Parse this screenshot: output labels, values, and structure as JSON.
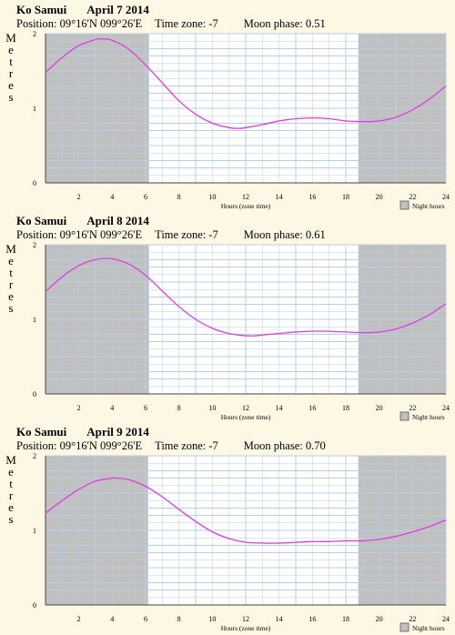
{
  "location": "Ko Samui",
  "position": "Position: 09°16'N 099°26'E",
  "timezone": "Time zone: -7",
  "ylabel": "Metres",
  "xlabel": "Hours (zone time)",
  "legend": "Night hours",
  "colors": {
    "background": "#fdf8e4",
    "night": "#c0c0c0",
    "grid": "#b7cfe6",
    "tide": "#e03ce0"
  },
  "chart_data": [
    {
      "type": "line",
      "date": "April 7 2014",
      "moon_phase": "Moon phase: 0.51",
      "xlim": [
        0,
        24
      ],
      "ylim": [
        0,
        2
      ],
      "xticks": [
        2,
        4,
        6,
        8,
        10,
        12,
        14,
        16,
        18,
        20,
        22,
        24
      ],
      "yticks": [
        0,
        1,
        2
      ],
      "night": [
        [
          0,
          6.2
        ],
        [
          18.75,
          24
        ]
      ],
      "series": [
        {
          "x": [
            0,
            1,
            2,
            3,
            3.3,
            4,
            5,
            6,
            7,
            8,
            9,
            10,
            11,
            11.6,
            12,
            13,
            14,
            15,
            16,
            17,
            18,
            19,
            20,
            21,
            22,
            23,
            24
          ],
          "values": [
            1.48,
            1.68,
            1.84,
            1.92,
            1.93,
            1.91,
            1.79,
            1.58,
            1.34,
            1.1,
            0.92,
            0.8,
            0.74,
            0.73,
            0.74,
            0.78,
            0.83,
            0.86,
            0.87,
            0.86,
            0.83,
            0.82,
            0.83,
            0.88,
            0.98,
            1.12,
            1.3
          ]
        }
      ]
    },
    {
      "type": "line",
      "date": "April 8 2014",
      "moon_phase": "Moon phase: 0.61",
      "xlim": [
        0,
        24
      ],
      "ylim": [
        0,
        2
      ],
      "xticks": [
        2,
        4,
        6,
        8,
        10,
        12,
        14,
        16,
        18,
        20,
        22,
        24
      ],
      "yticks": [
        0,
        1,
        2
      ],
      "night": [
        [
          0,
          6.2
        ],
        [
          18.75,
          24
        ]
      ],
      "series": [
        {
          "x": [
            0,
            1,
            2,
            3,
            4,
            5,
            6,
            7,
            8,
            9,
            10,
            11,
            12,
            12.6,
            13,
            14,
            15,
            16,
            17,
            18,
            19,
            20,
            21,
            22,
            23,
            24
          ],
          "values": [
            1.37,
            1.57,
            1.72,
            1.8,
            1.81,
            1.74,
            1.59,
            1.38,
            1.17,
            1.0,
            0.88,
            0.81,
            0.78,
            0.78,
            0.79,
            0.81,
            0.83,
            0.84,
            0.84,
            0.83,
            0.82,
            0.83,
            0.87,
            0.95,
            1.06,
            1.21
          ]
        }
      ]
    },
    {
      "type": "line",
      "date": "April 9 2014",
      "moon_phase": "Moon phase: 0.70",
      "xlim": [
        0,
        24
      ],
      "ylim": [
        0,
        2
      ],
      "xticks": [
        2,
        4,
        6,
        8,
        10,
        12,
        14,
        16,
        18,
        20,
        22,
        24
      ],
      "yticks": [
        0,
        1,
        2
      ],
      "night": [
        [
          0,
          6.15
        ],
        [
          18.75,
          24
        ]
      ],
      "series": [
        {
          "x": [
            0,
            1,
            2,
            3,
            4,
            4.3,
            5,
            6,
            7,
            8,
            9,
            10,
            11,
            12,
            13,
            14,
            15,
            16,
            17,
            18,
            19,
            20,
            21,
            22,
            23,
            24
          ],
          "values": [
            1.23,
            1.4,
            1.55,
            1.66,
            1.7,
            1.7,
            1.68,
            1.59,
            1.45,
            1.28,
            1.12,
            0.98,
            0.89,
            0.84,
            0.83,
            0.83,
            0.84,
            0.85,
            0.85,
            0.86,
            0.86,
            0.88,
            0.92,
            0.98,
            1.05,
            1.14
          ]
        }
      ]
    }
  ]
}
